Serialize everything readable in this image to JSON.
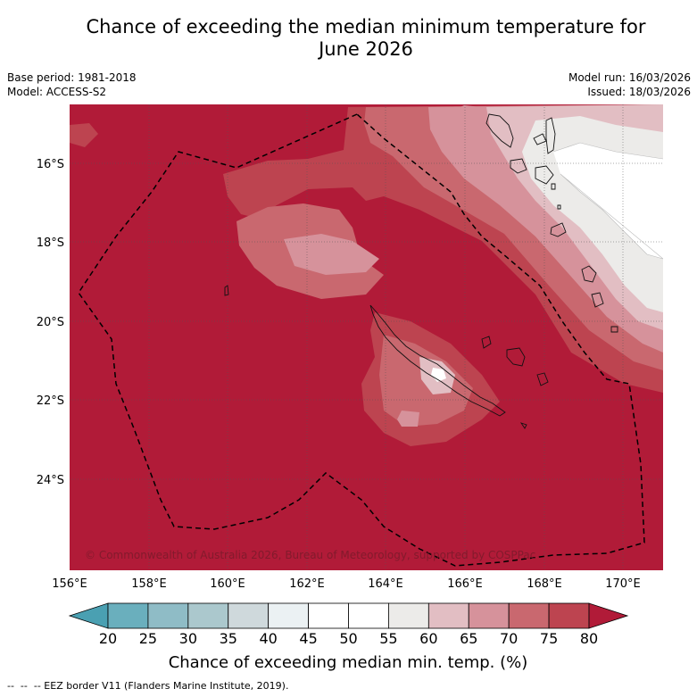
{
  "title_line1": "Chance of exceeding the median minimum temperature for",
  "title_line2": "June 2026",
  "base_period": "Base period: 1981-2018",
  "model": "Model: ACCESS-S2",
  "model_run": "Model run: 16/03/2026",
  "issued": "Issued: 18/03/2026",
  "copyright": "© Commonwealth of Australia 2026, Bureau of Meteorology, supported by COSPPac",
  "lat_labels": [
    "16°S",
    "18°S",
    "20°S",
    "22°S",
    "24°S"
  ],
  "lon_labels": [
    "156°E",
    "158°E",
    "160°E",
    "162°E",
    "164°E",
    "166°E",
    "168°E",
    "170°E"
  ],
  "colorbar": {
    "ticks": [
      "20",
      "25",
      "30",
      "35",
      "40",
      "45",
      "50",
      "55",
      "60",
      "65",
      "70",
      "75",
      "80"
    ],
    "colors": [
      "#4aa0b2",
      "#6aafbd",
      "#8fbcc6",
      "#abc8cd",
      "#cfd9dc",
      "#ebf1f3",
      "#ffffff",
      "#ffffff",
      "#ecebe9",
      "#e2bec3",
      "#d6929b",
      "#c9686f",
      "#bd4450",
      "#b11b38"
    ],
    "label": "Chance of exceeding median min. temp. (%)"
  },
  "legend_note": "--  --  -- EEZ border V11 (Flanders Marine Institute, 2019)."
}
